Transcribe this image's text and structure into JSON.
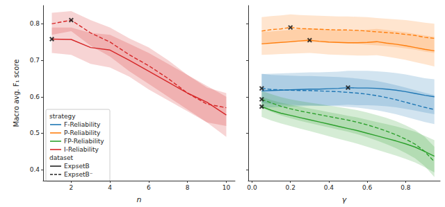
{
  "chart_data": [
    {
      "type": "line",
      "xlabel": "n",
      "ylabel": "Macro avg. F₁ score",
      "xlim": [
        0.55,
        10.45
      ],
      "xticks": [
        2,
        4,
        6,
        8,
        10
      ],
      "ylim": [
        0.37,
        0.85
      ],
      "yticks": [
        0.4,
        0.5,
        0.6,
        0.7,
        0.8
      ],
      "grid": false,
      "tick_labels": true,
      "marker": "x",
      "legend": "lower left",
      "legend_groups": [
        {
          "title": "strategy",
          "items": [
            {
              "name": "F-Reliability",
              "color": "#1f77b4"
            },
            {
              "name": "P-Reliability",
              "color": "#ff7f0e"
            },
            {
              "name": "FP-Reliability",
              "color": "#2ca02c"
            },
            {
              "name": "I-Reliability",
              "color": "#d62728"
            }
          ]
        },
        {
          "title": "dataset",
          "items": [
            {
              "name": "ExpsetB",
              "line_style": "solid"
            },
            {
              "name": "ExpsetB⁻",
              "line_style": "dashed"
            }
          ]
        }
      ],
      "x": [
        1,
        2,
        3,
        4,
        5,
        6,
        7,
        8,
        9,
        10
      ],
      "series": [
        {
          "strategy": "I-Reliability",
          "dataset": "ExpsetB",
          "color": "#d62728",
          "line_style": "solid",
          "values": [
            0.758,
            0.757,
            0.735,
            0.728,
            0.7,
            0.67,
            0.64,
            0.61,
            0.585,
            0.55
          ],
          "lower": [
            0.72,
            0.715,
            0.69,
            0.68,
            0.655,
            0.62,
            0.59,
            0.56,
            0.53,
            0.49
          ],
          "upper": [
            0.79,
            0.79,
            0.775,
            0.77,
            0.745,
            0.72,
            0.69,
            0.66,
            0.63,
            0.6
          ],
          "best": {
            "x": 1,
            "y": 0.758
          }
        },
        {
          "strategy": "I-Reliability",
          "dataset": "ExpsetB⁻",
          "color": "#d62728",
          "line_style": "dashed",
          "values": [
            0.8,
            0.81,
            0.775,
            0.75,
            0.715,
            0.685,
            0.65,
            0.61,
            0.58,
            0.57
          ],
          "lower": [
            0.77,
            0.78,
            0.74,
            0.71,
            0.67,
            0.635,
            0.6,
            0.565,
            0.53,
            0.52
          ],
          "upper": [
            0.83,
            0.835,
            0.81,
            0.79,
            0.76,
            0.735,
            0.7,
            0.66,
            0.625,
            0.61
          ],
          "best": {
            "x": 2,
            "y": 0.81
          }
        }
      ]
    },
    {
      "type": "line",
      "xlabel": "γ",
      "xlim": [
        -0.02,
        0.98
      ],
      "xticks": [
        {
          "value": 0,
          "label": "0.0"
        },
        0.2,
        0.4,
        0.6,
        0.8
      ],
      "ylim": [
        0.37,
        0.85
      ],
      "yticks": [
        0.4,
        0.5,
        0.6,
        0.7,
        0.8
      ],
      "grid": false,
      "tick_labels": "x",
      "marker": "x",
      "x": [
        0.05,
        0.1,
        0.15,
        0.2,
        0.25,
        0.3,
        0.35,
        0.4,
        0.45,
        0.5,
        0.55,
        0.6,
        0.65,
        0.7,
        0.75,
        0.8,
        0.85,
        0.9,
        0.95
      ],
      "series": [
        {
          "strategy": "P-Reliability",
          "dataset": "ExpsetB",
          "color": "#ff7f0e",
          "line_style": "solid",
          "values": [
            0.745,
            0.747,
            0.749,
            0.751,
            0.753,
            0.755,
            0.752,
            0.75,
            0.749,
            0.748,
            0.748,
            0.749,
            0.751,
            0.747,
            0.744,
            0.74,
            0.735,
            0.73,
            0.726
          ],
          "lower": [
            0.715,
            0.716,
            0.717,
            0.718,
            0.719,
            0.72,
            0.718,
            0.716,
            0.715,
            0.714,
            0.713,
            0.713,
            0.714,
            0.71,
            0.706,
            0.701,
            0.695,
            0.689,
            0.683
          ],
          "upper": [
            0.778,
            0.779,
            0.781,
            0.783,
            0.786,
            0.788,
            0.786,
            0.784,
            0.783,
            0.782,
            0.782,
            0.784,
            0.786,
            0.783,
            0.78,
            0.777,
            0.772,
            0.768,
            0.764
          ],
          "best": {
            "x": 0.3,
            "y": 0.755
          }
        },
        {
          "strategy": "P-Reliability",
          "dataset": "ExpsetB⁻",
          "color": "#ff7f0e",
          "line_style": "dashed",
          "values": [
            0.78,
            0.784,
            0.786,
            0.79,
            0.787,
            0.786,
            0.785,
            0.784,
            0.783,
            0.783,
            0.782,
            0.78,
            0.778,
            0.776,
            0.774,
            0.771,
            0.768,
            0.763,
            0.76
          ],
          "lower": [
            0.745,
            0.749,
            0.751,
            0.754,
            0.751,
            0.75,
            0.749,
            0.748,
            0.747,
            0.746,
            0.745,
            0.743,
            0.741,
            0.739,
            0.736,
            0.733,
            0.729,
            0.724,
            0.72
          ],
          "upper": [
            0.818,
            0.821,
            0.823,
            0.826,
            0.824,
            0.823,
            0.822,
            0.821,
            0.82,
            0.82,
            0.819,
            0.818,
            0.816,
            0.814,
            0.812,
            0.81,
            0.807,
            0.803,
            0.8
          ],
          "best": {
            "x": 0.2,
            "y": 0.79
          }
        },
        {
          "strategy": "F-Reliability",
          "dataset": "ExpsetB",
          "color": "#1f77b4",
          "line_style": "solid",
          "values": [
            0.616,
            0.617,
            0.618,
            0.619,
            0.62,
            0.621,
            0.621,
            0.622,
            0.623,
            0.625,
            0.624,
            0.624,
            0.623,
            0.621,
            0.618,
            0.614,
            0.609,
            0.604,
            0.6
          ],
          "lower": [
            0.57,
            0.571,
            0.572,
            0.573,
            0.574,
            0.575,
            0.575,
            0.576,
            0.577,
            0.578,
            0.577,
            0.577,
            0.576,
            0.574,
            0.571,
            0.567,
            0.562,
            0.557,
            0.552
          ],
          "upper": [
            0.662,
            0.663,
            0.664,
            0.665,
            0.666,
            0.667,
            0.667,
            0.668,
            0.669,
            0.671,
            0.671,
            0.671,
            0.67,
            0.668,
            0.665,
            0.661,
            0.656,
            0.651,
            0.648
          ],
          "best": {
            "x": 0.5,
            "y": 0.625
          }
        },
        {
          "strategy": "F-Reliability",
          "dataset": "ExpsetB⁻",
          "color": "#1f77b4",
          "line_style": "dashed",
          "values": [
            0.623,
            0.62,
            0.619,
            0.618,
            0.617,
            0.617,
            0.616,
            0.615,
            0.614,
            0.612,
            0.61,
            0.607,
            0.603,
            0.598,
            0.592,
            0.585,
            0.578,
            0.571,
            0.565
          ],
          "lower": [
            0.583,
            0.58,
            0.579,
            0.578,
            0.577,
            0.577,
            0.576,
            0.575,
            0.574,
            0.572,
            0.57,
            0.567,
            0.563,
            0.558,
            0.552,
            0.545,
            0.538,
            0.531,
            0.525
          ],
          "upper": [
            0.663,
            0.66,
            0.659,
            0.658,
            0.657,
            0.657,
            0.656,
            0.655,
            0.654,
            0.652,
            0.65,
            0.647,
            0.643,
            0.638,
            0.632,
            0.625,
            0.618,
            0.611,
            0.605
          ],
          "best": {
            "x": 0.05,
            "y": 0.623
          }
        },
        {
          "strategy": "FP-Reliability",
          "dataset": "ExpsetB",
          "color": "#2ca02c",
          "line_style": "solid",
          "values": [
            0.573,
            0.563,
            0.555,
            0.549,
            0.543,
            0.537,
            0.531,
            0.525,
            0.519,
            0.513,
            0.507,
            0.5,
            0.493,
            0.486,
            0.479,
            0.471,
            0.462,
            0.45,
            0.437
          ],
          "lower": [
            0.545,
            0.535,
            0.527,
            0.52,
            0.513,
            0.506,
            0.499,
            0.492,
            0.485,
            0.478,
            0.471,
            0.463,
            0.455,
            0.447,
            0.439,
            0.43,
            0.42,
            0.407,
            0.393
          ],
          "upper": [
            0.6,
            0.591,
            0.584,
            0.578,
            0.573,
            0.568,
            0.563,
            0.558,
            0.553,
            0.548,
            0.543,
            0.537,
            0.531,
            0.525,
            0.519,
            0.512,
            0.504,
            0.493,
            0.481
          ],
          "best": {
            "x": 0.05,
            "y": 0.573
          }
        },
        {
          "strategy": "FP-Reliability",
          "dataset": "ExpsetB⁻",
          "color": "#2ca02c",
          "line_style": "dashed",
          "values": [
            0.593,
            0.583,
            0.574,
            0.567,
            0.561,
            0.556,
            0.551,
            0.546,
            0.541,
            0.536,
            0.53,
            0.523,
            0.515,
            0.506,
            0.496,
            0.484,
            0.47,
            0.45,
            0.422
          ],
          "lower": [
            0.57,
            0.559,
            0.549,
            0.541,
            0.534,
            0.528,
            0.522,
            0.516,
            0.51,
            0.504,
            0.497,
            0.489,
            0.48,
            0.47,
            0.459,
            0.446,
            0.431,
            0.41,
            0.38
          ],
          "upper": [
            0.616,
            0.607,
            0.599,
            0.593,
            0.588,
            0.584,
            0.58,
            0.576,
            0.572,
            0.568,
            0.563,
            0.557,
            0.55,
            0.542,
            0.533,
            0.522,
            0.509,
            0.49,
            0.463
          ],
          "best": {
            "x": 0.05,
            "y": 0.593
          }
        }
      ]
    }
  ]
}
